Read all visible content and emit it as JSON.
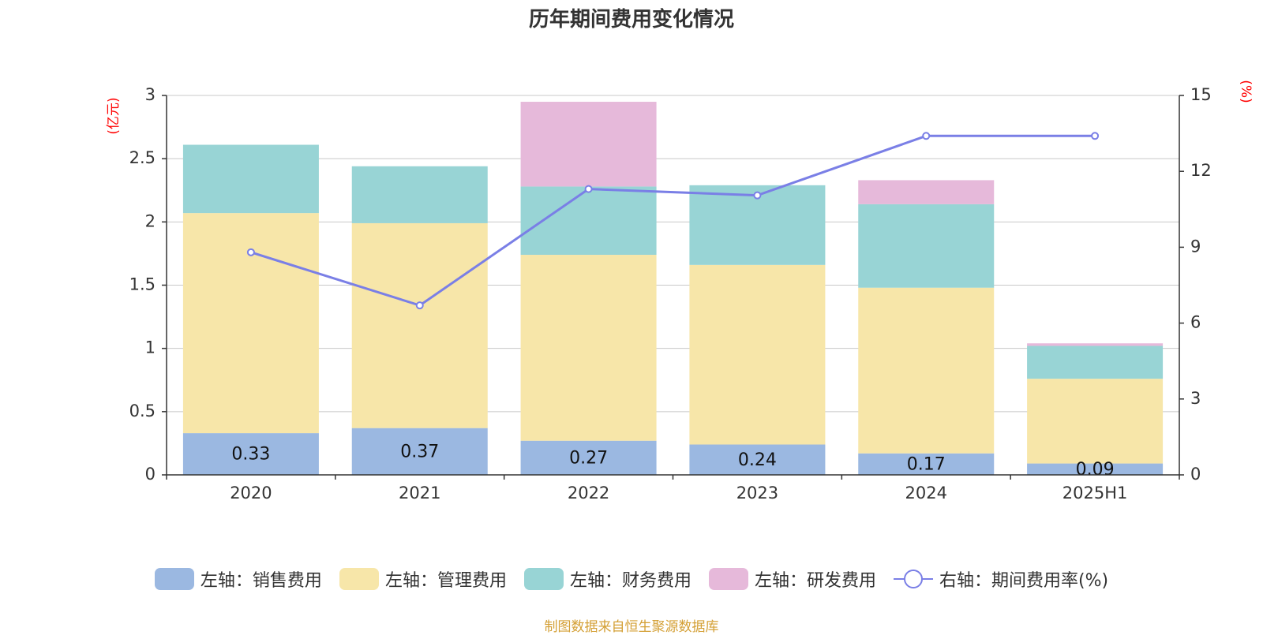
{
  "title": "历年期间费用变化情况",
  "source": "制图数据来自恒生聚源数据库",
  "left_unit": "(亿元)",
  "right_unit": "(%)",
  "legend": [
    {
      "label": "左轴：销售费用",
      "color": "#9bb8e1",
      "kind": "bar"
    },
    {
      "label": "左轴：管理费用",
      "color": "#f7e6a9",
      "kind": "bar"
    },
    {
      "label": "左轴：财务费用",
      "color": "#98d4d5",
      "kind": "bar"
    },
    {
      "label": "左轴：研发费用",
      "color": "#e6b9da",
      "kind": "bar"
    },
    {
      "label": "右轴：期间费用率(%)",
      "color": "#7a7fe6",
      "kind": "line"
    }
  ],
  "chart_data": {
    "type": "bar",
    "stacked": true,
    "title": "历年期间费用变化情况",
    "categories": [
      "2020",
      "2021",
      "2022",
      "2023",
      "2024",
      "2025H1"
    ],
    "series": [
      {
        "name": "左轴：销售费用",
        "axis": "left",
        "color": "#9bb8e1",
        "values": [
          0.33,
          0.37,
          0.27,
          0.24,
          0.17,
          0.09
        ],
        "labels": [
          "0.33",
          "0.37",
          "0.27",
          "0.24",
          "0.17",
          "0.09"
        ]
      },
      {
        "name": "左轴：管理费用",
        "axis": "left",
        "color": "#f7e6a9",
        "values": [
          1.74,
          1.62,
          1.47,
          1.42,
          1.31,
          0.67
        ]
      },
      {
        "name": "左轴：财务费用",
        "axis": "left",
        "color": "#98d4d5",
        "values": [
          0.54,
          0.45,
          0.54,
          0.63,
          0.66,
          0.26
        ]
      },
      {
        "name": "左轴：研发费用",
        "axis": "left",
        "color": "#e6b9da",
        "values": [
          0,
          0,
          0.67,
          0,
          0.19,
          0.02
        ]
      },
      {
        "name": "右轴：期间费用率(%)",
        "axis": "right",
        "type": "line",
        "color": "#7a7fe6",
        "values": [
          8.8,
          6.7,
          11.3,
          11.05,
          13.4,
          13.4
        ]
      }
    ],
    "left_axis": {
      "unit": "(亿元)",
      "ylim": [
        0,
        3
      ],
      "ticks": [
        "0",
        "0.5",
        "1",
        "1.5",
        "2",
        "2.5",
        "3"
      ]
    },
    "right_axis": {
      "unit": "(%)",
      "ylim": [
        0,
        15
      ],
      "ticks": [
        "0",
        "3",
        "6",
        "9",
        "12",
        "15"
      ]
    },
    "grid": true,
    "legend_position": "bottom"
  }
}
